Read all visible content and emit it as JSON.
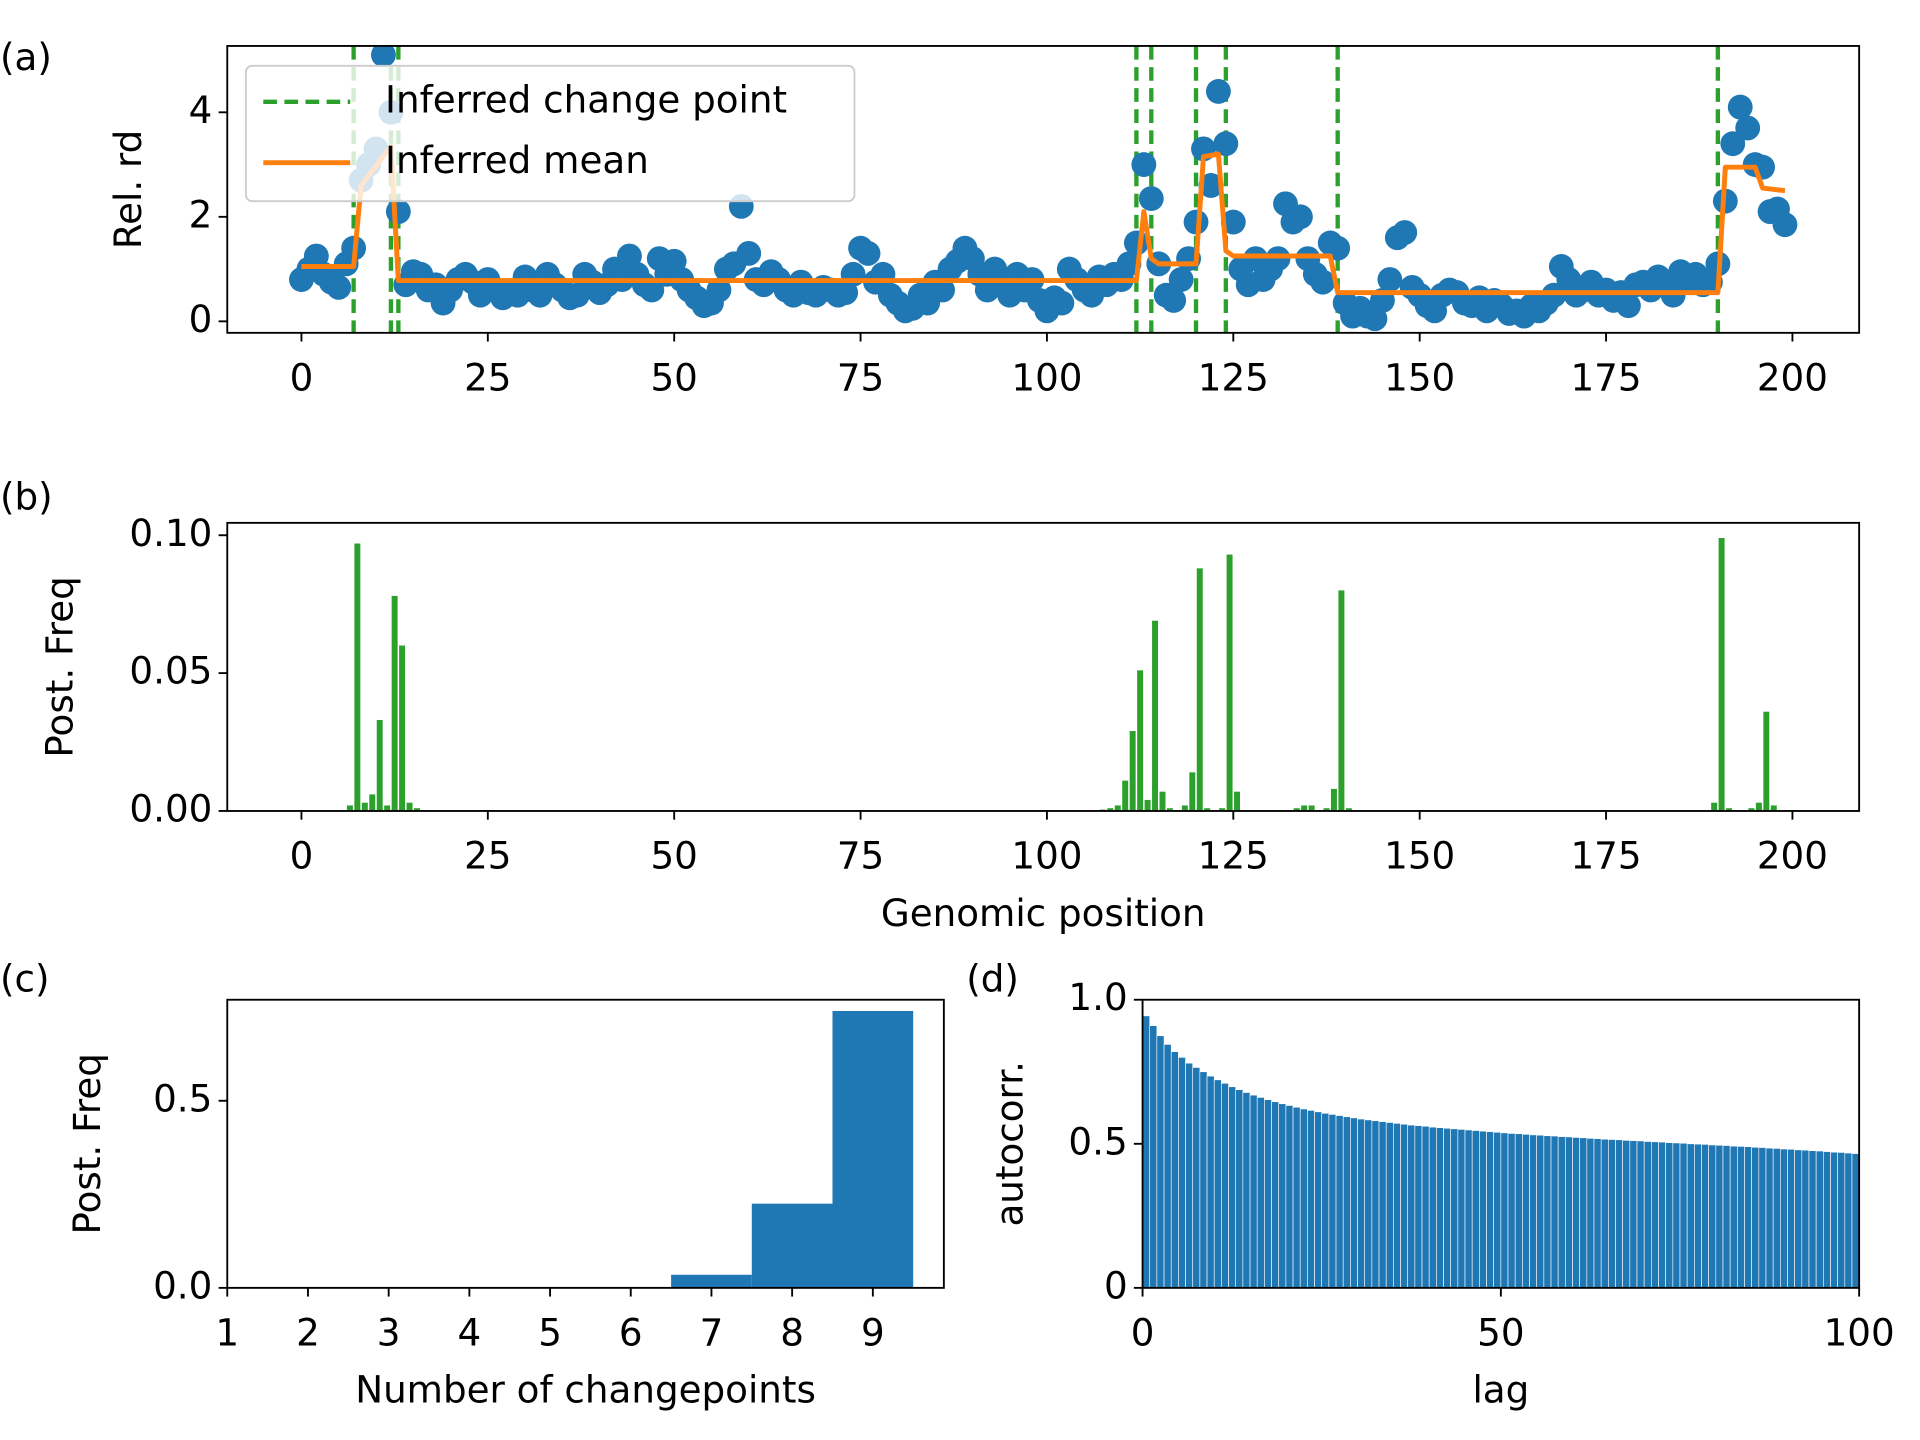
{
  "chart_data": [
    {
      "type": "scatter",
      "panel_label": "(a)",
      "ylabel": "Rel. rd",
      "x": [
        0,
        1,
        2,
        3,
        4,
        5,
        6,
        7,
        8,
        9,
        10,
        11,
        12,
        13,
        14,
        15,
        16,
        17,
        18,
        19,
        20,
        21,
        22,
        23,
        24,
        25,
        26,
        27,
        28,
        29,
        30,
        31,
        32,
        33,
        34,
        35,
        36,
        37,
        38,
        39,
        40,
        41,
        42,
        43,
        44,
        45,
        46,
        47,
        48,
        49,
        50,
        51,
        52,
        53,
        54,
        55,
        56,
        57,
        58,
        59,
        60,
        61,
        62,
        63,
        64,
        65,
        66,
        67,
        68,
        69,
        70,
        71,
        72,
        73,
        74,
        75,
        76,
        77,
        78,
        79,
        80,
        81,
        82,
        83,
        84,
        85,
        86,
        87,
        88,
        89,
        90,
        91,
        92,
        93,
        94,
        95,
        96,
        97,
        98,
        99,
        100,
        101,
        102,
        103,
        104,
        105,
        106,
        107,
        108,
        109,
        110,
        111,
        112,
        113,
        114,
        115,
        116,
        117,
        118,
        119,
        120,
        121,
        122,
        123,
        124,
        125,
        126,
        127,
        128,
        129,
        130,
        131,
        132,
        133,
        134,
        135,
        136,
        137,
        138,
        139,
        140,
        141,
        142,
        143,
        144,
        145,
        146,
        147,
        148,
        149,
        150,
        151,
        152,
        153,
        154,
        155,
        156,
        157,
        158,
        159,
        160,
        161,
        162,
        163,
        164,
        165,
        166,
        167,
        168,
        169,
        170,
        171,
        172,
        173,
        174,
        175,
        176,
        177,
        178,
        179,
        180,
        181,
        182,
        183,
        184,
        185,
        186,
        187,
        188,
        189,
        190,
        191,
        192,
        193,
        194,
        195,
        196,
        197,
        198,
        199
      ],
      "values": [
        0.8,
        1.0,
        1.25,
        0.9,
        0.75,
        0.65,
        1.1,
        1.4,
        2.7,
        3.0,
        3.3,
        5.1,
        4.0,
        2.1,
        0.7,
        0.95,
        0.9,
        0.6,
        0.7,
        0.35,
        0.6,
        0.8,
        0.9,
        0.75,
        0.5,
        0.8,
        0.6,
        0.45,
        0.55,
        0.5,
        0.85,
        0.6,
        0.5,
        0.9,
        0.7,
        0.6,
        0.45,
        0.5,
        0.9,
        0.75,
        0.55,
        0.7,
        1.0,
        0.8,
        1.25,
        0.9,
        0.7,
        0.6,
        1.2,
        0.9,
        1.15,
        0.8,
        0.6,
        0.45,
        0.3,
        0.35,
        0.6,
        1.0,
        1.1,
        2.2,
        1.3,
        0.8,
        0.7,
        0.95,
        0.8,
        0.6,
        0.5,
        0.75,
        0.55,
        0.5,
        0.65,
        0.6,
        0.5,
        0.55,
        0.9,
        1.4,
        1.3,
        0.75,
        0.9,
        0.5,
        0.35,
        0.2,
        0.25,
        0.5,
        0.35,
        0.75,
        0.6,
        1.0,
        1.15,
        1.4,
        1.2,
        0.9,
        0.6,
        1.0,
        0.75,
        0.5,
        0.9,
        0.6,
        0.8,
        0.4,
        0.2,
        0.45,
        0.35,
        1.0,
        0.8,
        0.6,
        0.5,
        0.85,
        0.7,
        0.9,
        0.8,
        1.1,
        1.5,
        3.0,
        2.35,
        1.1,
        0.5,
        0.4,
        0.8,
        1.2,
        1.9,
        3.3,
        2.6,
        4.4,
        3.4,
        1.9,
        1.0,
        0.7,
        1.2,
        0.8,
        1.0,
        1.2,
        2.25,
        1.9,
        2.0,
        1.2,
        0.9,
        0.75,
        1.5,
        1.4,
        0.35,
        0.1,
        0.25,
        0.1,
        0.05,
        0.4,
        0.8,
        1.6,
        1.7,
        0.65,
        0.5,
        0.3,
        0.2,
        0.5,
        0.6,
        0.55,
        0.35,
        0.3,
        0.45,
        0.2,
        0.4,
        0.3,
        0.15,
        0.2,
        0.1,
        0.3,
        0.2,
        0.35,
        0.5,
        1.05,
        0.8,
        0.5,
        0.6,
        0.75,
        0.5,
        0.6,
        0.4,
        0.55,
        0.3,
        0.7,
        0.75,
        0.6,
        0.85,
        0.7,
        0.5,
        0.95,
        0.8,
        0.9,
        0.7,
        0.75,
        1.1,
        2.3,
        3.4,
        4.1,
        3.7,
        3.0,
        2.95,
        2.1,
        2.15,
        1.85
      ],
      "color": "#1f77b4",
      "mean": {
        "name": "Inferred mean",
        "color": "#ff7f0e",
        "x": [
          0,
          7,
          8,
          12,
          13,
          112,
          113,
          114,
          115,
          119,
          120,
          121,
          123,
          124,
          125,
          138,
          139,
          190,
          191,
          195,
          196,
          199
        ],
        "values": [
          1.05,
          1.05,
          2.6,
          3.35,
          0.78,
          0.78,
          2.1,
          1.2,
          1.1,
          1.1,
          1.1,
          3.15,
          3.2,
          1.35,
          1.25,
          1.25,
          0.55,
          0.55,
          2.95,
          2.95,
          2.55,
          2.5
        ]
      },
      "change_points": {
        "name": "Inferred change point",
        "color": "#2ca02c",
        "values": [
          7,
          12,
          13,
          112,
          114,
          120,
          124,
          139,
          190
        ]
      },
      "xlim": [
        -9.95,
        208.95
      ],
      "ylim": [
        -0.22,
        5.27
      ],
      "xticks": [
        0,
        25,
        50,
        75,
        100,
        125,
        150,
        175,
        200
      ],
      "yticks": [
        0,
        2,
        4
      ],
      "legend": "upper left"
    },
    {
      "type": "bar",
      "panel_label": "(b)",
      "ylabel": "Post. Freq",
      "xlabel": "Genomic position",
      "x": [
        0,
        1,
        2,
        3,
        4,
        5,
        6,
        7,
        8,
        9,
        10,
        11,
        12,
        13,
        14,
        15,
        16,
        17,
        18,
        19,
        20,
        21,
        22,
        23,
        24,
        25,
        26,
        27,
        28,
        29,
        30,
        31,
        32,
        33,
        34,
        35,
        36,
        37,
        38,
        39,
        40,
        41,
        42,
        43,
        44,
        45,
        46,
        47,
        48,
        49,
        50,
        51,
        52,
        53,
        54,
        55,
        56,
        57,
        58,
        59,
        60,
        61,
        62,
        63,
        64,
        65,
        66,
        67,
        68,
        69,
        70,
        71,
        72,
        73,
        74,
        75,
        76,
        77,
        78,
        79,
        80,
        81,
        82,
        83,
        84,
        85,
        86,
        87,
        88,
        89,
        90,
        91,
        92,
        93,
        94,
        95,
        96,
        97,
        98,
        99,
        100,
        101,
        102,
        103,
        104,
        105,
        106,
        107,
        108,
        109,
        110,
        111,
        112,
        113,
        114,
        115,
        116,
        117,
        118,
        119,
        120,
        121,
        122,
        123,
        124,
        125,
        126,
        127,
        128,
        129,
        130,
        131,
        132,
        133,
        134,
        135,
        136,
        137,
        138,
        139,
        140,
        141,
        142,
        143,
        144,
        145,
        146,
        147,
        148,
        149,
        150,
        151,
        152,
        153,
        154,
        155,
        156,
        157,
        158,
        159,
        160,
        161,
        162,
        163,
        164,
        165,
        166,
        167,
        168,
        169,
        170,
        171,
        172,
        173,
        174,
        175,
        176,
        177,
        178,
        179,
        180,
        181,
        182,
        183,
        184,
        185,
        186,
        187,
        188,
        189,
        190,
        191,
        192,
        193,
        194,
        195,
        196,
        197,
        198,
        199
      ],
      "values": [
        0,
        0,
        0,
        0,
        0,
        0,
        0.002,
        0.097,
        0.003,
        0.006,
        0.033,
        0.002,
        0.078,
        0.06,
        0.003,
        0.001,
        0,
        0,
        0,
        0,
        0,
        0,
        0,
        0,
        0,
        0,
        0,
        0,
        0,
        0,
        0,
        0,
        0,
        0,
        0,
        0,
        0,
        0,
        0,
        0,
        0,
        0,
        0,
        0,
        0,
        0,
        0,
        0,
        0,
        0,
        0,
        0,
        0,
        0,
        0,
        0,
        0,
        0,
        0,
        0,
        0,
        0,
        0,
        0,
        0,
        0,
        0,
        0,
        0,
        0,
        0,
        0,
        0,
        0,
        0,
        0,
        0,
        0,
        0,
        0,
        0,
        0,
        0,
        0,
        0,
        0,
        0,
        0,
        0,
        0,
        0,
        0,
        0,
        0,
        0,
        0,
        0,
        0,
        0,
        0,
        0,
        0,
        0,
        0,
        0,
        0,
        0,
        0.0005,
        0.001,
        0.002,
        0.011,
        0.029,
        0.051,
        0.004,
        0.069,
        0.007,
        0.001,
        0,
        0.002,
        0.014,
        0.088,
        0.001,
        0,
        0.001,
        0.093,
        0.007,
        0,
        0,
        0,
        0,
        0,
        0,
        0,
        0.001,
        0.002,
        0.002,
        0,
        0.001,
        0.008,
        0.08,
        0.001,
        0,
        0,
        0,
        0,
        0,
        0,
        0,
        0,
        0,
        0,
        0,
        0,
        0,
        0,
        0,
        0,
        0,
        0,
        0,
        0,
        0,
        0,
        0,
        0,
        0,
        0,
        0,
        0,
        0,
        0,
        0,
        0,
        0,
        0,
        0,
        0,
        0,
        0,
        0,
        0,
        0,
        0,
        0,
        0,
        0,
        0,
        0,
        0,
        0.003,
        0.099,
        0.001,
        0,
        0,
        0.001,
        0.003,
        0.036,
        0.002,
        0,
        0
      ],
      "color": "#2ca02c",
      "xlim": [
        -9.95,
        208.95
      ],
      "ylim": [
        0,
        0.1045
      ],
      "xticks": [
        0,
        25,
        50,
        75,
        100,
        125,
        150,
        175,
        200
      ],
      "yticks": [
        {
          "value": 0,
          "label": "0.00"
        },
        {
          "value": 0.05,
          "label": "0.05"
        },
        {
          "value": 0.1,
          "label": "0.10"
        }
      ]
    },
    {
      "type": "histogram",
      "panel_label": "(c)",
      "ylabel": "Post. Freq",
      "xlabel": "Number of changepoints",
      "bins": [
        0.5,
        1.5,
        2.5,
        3.5,
        4.5,
        5.5,
        6.5,
        7.5,
        8.5,
        9.5
      ],
      "values": [
        0,
        0,
        0,
        0,
        0,
        0,
        0.035,
        0.225,
        0.74
      ],
      "color": "#1f77b4",
      "xlim": [
        1,
        9.88
      ],
      "ylim": [
        0,
        0.77
      ],
      "xticks": [
        1,
        2,
        3,
        4,
        5,
        6,
        7,
        8,
        9
      ],
      "yticks": [
        {
          "value": 0,
          "label": "0.0"
        },
        {
          "value": 0.5,
          "label": "0.5"
        }
      ]
    },
    {
      "type": "bar",
      "panel_label": "(d)",
      "ylabel": "autocorr.",
      "xlabel": "lag",
      "x": [
        0,
        1,
        2,
        3,
        4,
        5,
        6,
        7,
        8,
        9,
        10,
        11,
        12,
        13,
        14,
        15,
        16,
        17,
        18,
        19,
        20,
        21,
        22,
        23,
        24,
        25,
        26,
        27,
        28,
        29,
        30,
        31,
        32,
        33,
        34,
        35,
        36,
        37,
        38,
        39,
        40,
        41,
        42,
        43,
        44,
        45,
        46,
        47,
        48,
        49,
        50,
        51,
        52,
        53,
        54,
        55,
        56,
        57,
        58,
        59,
        60,
        61,
        62,
        63,
        64,
        65,
        66,
        67,
        68,
        69,
        70,
        71,
        72,
        73,
        74,
        75,
        76,
        77,
        78,
        79,
        80,
        81,
        82,
        83,
        84,
        85,
        86,
        87,
        88,
        89,
        90,
        91,
        92,
        93,
        94,
        95,
        96,
        97,
        98,
        99
      ],
      "values": [
        0.944,
        0.91,
        0.875,
        0.845,
        0.82,
        0.8,
        0.78,
        0.765,
        0.75,
        0.735,
        0.722,
        0.71,
        0.698,
        0.688,
        0.678,
        0.669,
        0.661,
        0.653,
        0.646,
        0.639,
        0.633,
        0.627,
        0.621,
        0.616,
        0.611,
        0.606,
        0.602,
        0.598,
        0.594,
        0.59,
        0.586,
        0.583,
        0.58,
        0.577,
        0.574,
        0.571,
        0.568,
        0.565,
        0.563,
        0.561,
        0.558,
        0.556,
        0.554,
        0.552,
        0.55,
        0.548,
        0.546,
        0.544,
        0.542,
        0.54,
        0.538,
        0.536,
        0.535,
        0.533,
        0.531,
        0.53,
        0.528,
        0.527,
        0.525,
        0.524,
        0.522,
        0.521,
        0.519,
        0.518,
        0.516,
        0.515,
        0.514,
        0.512,
        0.511,
        0.51,
        0.508,
        0.507,
        0.506,
        0.504,
        0.503,
        0.502,
        0.5,
        0.499,
        0.498,
        0.496,
        0.495,
        0.494,
        0.492,
        0.491,
        0.49,
        0.488,
        0.487,
        0.485,
        0.484,
        0.482,
        0.481,
        0.479,
        0.478,
        0.476,
        0.475,
        0.473,
        0.471,
        0.47,
        0.468,
        0.466
      ],
      "color": "#1f77b4",
      "xlim": [
        0,
        100
      ],
      "ylim": [
        0,
        1
      ],
      "xticks": [
        0,
        50,
        100
      ],
      "yticks": [
        0,
        0.5,
        {
          "value": 1,
          "label": "1.0"
        }
      ]
    }
  ]
}
